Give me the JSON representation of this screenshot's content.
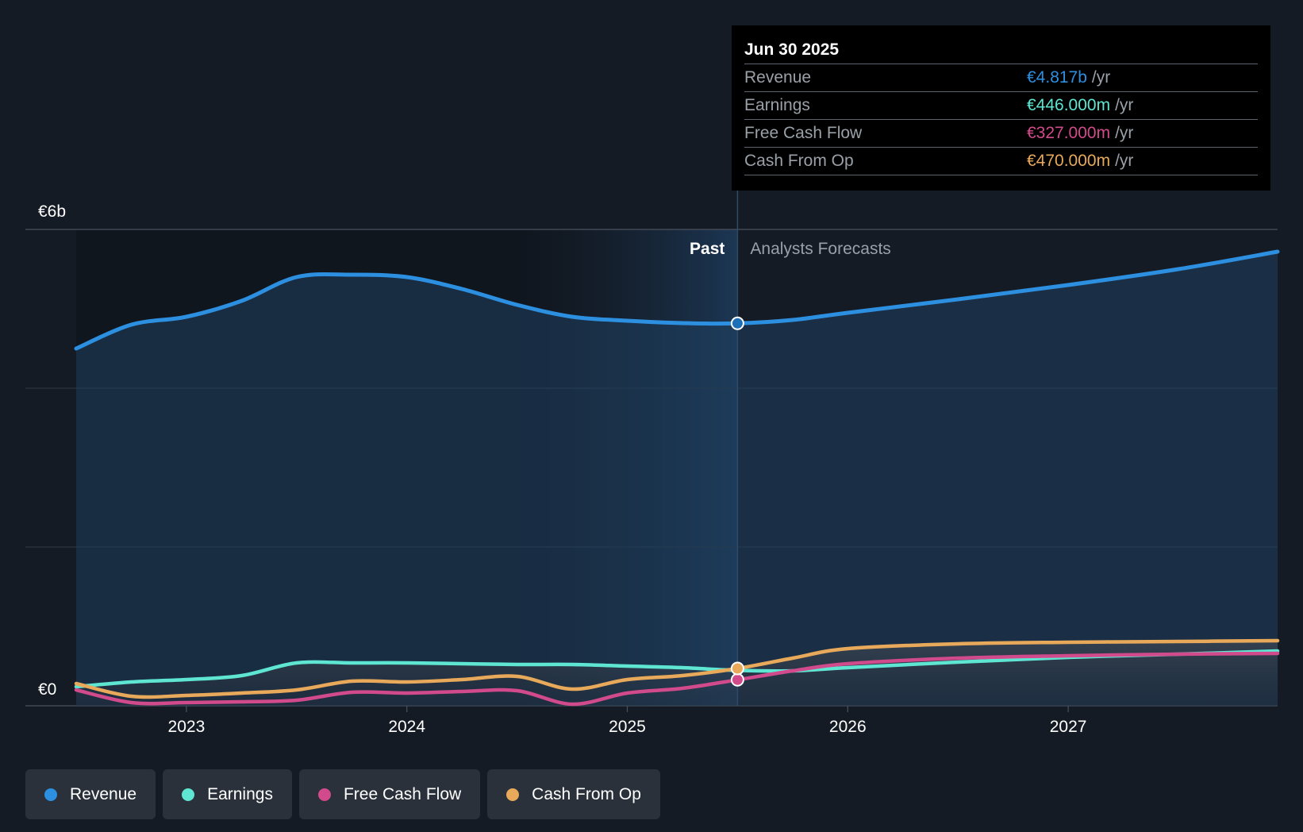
{
  "chart_data": {
    "type": "area",
    "currency_symbol": "€",
    "y_unit": "billions",
    "ylim": [
      0,
      6
    ],
    "y_tick_labels": [
      {
        "value": 6,
        "label": "€6b"
      },
      {
        "value": 0,
        "label": "€0"
      }
    ],
    "y_gridlines": [
      0,
      2,
      4,
      6
    ],
    "xlim": [
      2022.5,
      2027.95
    ],
    "x_ticks": [
      {
        "value": 2023.0,
        "label": "2023"
      },
      {
        "value": 2024.0,
        "label": "2024"
      },
      {
        "value": 2025.0,
        "label": "2025"
      },
      {
        "value": 2026.0,
        "label": "2026"
      },
      {
        "value": 2027.0,
        "label": "2027"
      }
    ],
    "past_end": 2025.5,
    "shaded_band_start": 2024.5,
    "past_label": "Past",
    "forecast_label": "Analysts Forecasts",
    "series": [
      {
        "name": "Revenue",
        "key": "revenue",
        "color": "#2d8fe0",
        "fill": true,
        "points": [
          [
            2022.5,
            4.5
          ],
          [
            2022.75,
            4.8
          ],
          [
            2023.0,
            4.9
          ],
          [
            2023.25,
            5.1
          ],
          [
            2023.5,
            5.4
          ],
          [
            2023.75,
            5.43
          ],
          [
            2024.0,
            5.4
          ],
          [
            2024.25,
            5.25
          ],
          [
            2024.5,
            5.05
          ],
          [
            2024.75,
            4.9
          ],
          [
            2025.0,
            4.85
          ],
          [
            2025.25,
            4.82
          ],
          [
            2025.5,
            4.817
          ],
          [
            2025.75,
            4.86
          ],
          [
            2026.0,
            4.95
          ],
          [
            2026.5,
            5.12
          ],
          [
            2027.0,
            5.3
          ],
          [
            2027.5,
            5.5
          ],
          [
            2027.95,
            5.72
          ]
        ]
      },
      {
        "name": "Earnings",
        "key": "earnings",
        "color": "#5ee6d3",
        "fill": false,
        "points": [
          [
            2022.5,
            0.24
          ],
          [
            2022.75,
            0.3
          ],
          [
            2023.0,
            0.33
          ],
          [
            2023.25,
            0.38
          ],
          [
            2023.5,
            0.54
          ],
          [
            2023.75,
            0.54
          ],
          [
            2024.0,
            0.54
          ],
          [
            2024.25,
            0.53
          ],
          [
            2024.5,
            0.52
          ],
          [
            2024.75,
            0.52
          ],
          [
            2025.0,
            0.5
          ],
          [
            2025.25,
            0.48
          ],
          [
            2025.5,
            0.446
          ],
          [
            2025.75,
            0.44
          ],
          [
            2026.0,
            0.48
          ],
          [
            2026.5,
            0.55
          ],
          [
            2027.0,
            0.61
          ],
          [
            2027.5,
            0.65
          ],
          [
            2027.95,
            0.69
          ]
        ]
      },
      {
        "name": "Free Cash Flow",
        "key": "fcf",
        "color": "#d14a8b",
        "fill": false,
        "points": [
          [
            2022.5,
            0.2
          ],
          [
            2022.75,
            0.04
          ],
          [
            2023.0,
            0.04
          ],
          [
            2023.25,
            0.05
          ],
          [
            2023.5,
            0.07
          ],
          [
            2023.75,
            0.17
          ],
          [
            2024.0,
            0.16
          ],
          [
            2024.25,
            0.18
          ],
          [
            2024.5,
            0.19
          ],
          [
            2024.75,
            0.02
          ],
          [
            2025.0,
            0.16
          ],
          [
            2025.25,
            0.22
          ],
          [
            2025.5,
            0.327
          ],
          [
            2025.75,
            0.44
          ],
          [
            2026.0,
            0.53
          ],
          [
            2026.5,
            0.6
          ],
          [
            2027.0,
            0.63
          ],
          [
            2027.5,
            0.65
          ],
          [
            2027.95,
            0.66
          ]
        ]
      },
      {
        "name": "Cash From Op",
        "key": "cfo",
        "color": "#e8a95b",
        "fill": false,
        "points": [
          [
            2022.5,
            0.28
          ],
          [
            2022.75,
            0.12
          ],
          [
            2023.0,
            0.13
          ],
          [
            2023.25,
            0.16
          ],
          [
            2023.5,
            0.2
          ],
          [
            2023.75,
            0.31
          ],
          [
            2024.0,
            0.3
          ],
          [
            2024.25,
            0.33
          ],
          [
            2024.5,
            0.37
          ],
          [
            2024.75,
            0.21
          ],
          [
            2025.0,
            0.33
          ],
          [
            2025.25,
            0.38
          ],
          [
            2025.5,
            0.47
          ],
          [
            2025.75,
            0.6
          ],
          [
            2026.0,
            0.72
          ],
          [
            2026.5,
            0.78
          ],
          [
            2027.0,
            0.8
          ],
          [
            2027.5,
            0.81
          ],
          [
            2027.95,
            0.82
          ]
        ]
      }
    ]
  },
  "tooltip": {
    "date": "Jun 30 2025",
    "rows": [
      {
        "label": "Revenue",
        "value": "€4.817b",
        "unit": "/yr",
        "color": "#2d8fe0"
      },
      {
        "label": "Earnings",
        "value": "€446.000m",
        "unit": "/yr",
        "color": "#5ee6d3"
      },
      {
        "label": "Free Cash Flow",
        "value": "€327.000m",
        "unit": "/yr",
        "color": "#d14a8b"
      },
      {
        "label": "Cash From Op",
        "value": "€470.000m",
        "unit": "/yr",
        "color": "#e8a95b"
      }
    ]
  },
  "legend": {
    "items": [
      {
        "label": "Revenue",
        "color": "#2d8fe0"
      },
      {
        "label": "Earnings",
        "color": "#5ee6d3"
      },
      {
        "label": "Free Cash Flow",
        "color": "#d14a8b"
      },
      {
        "label": "Cash From Op",
        "color": "#e8a95b"
      }
    ]
  }
}
